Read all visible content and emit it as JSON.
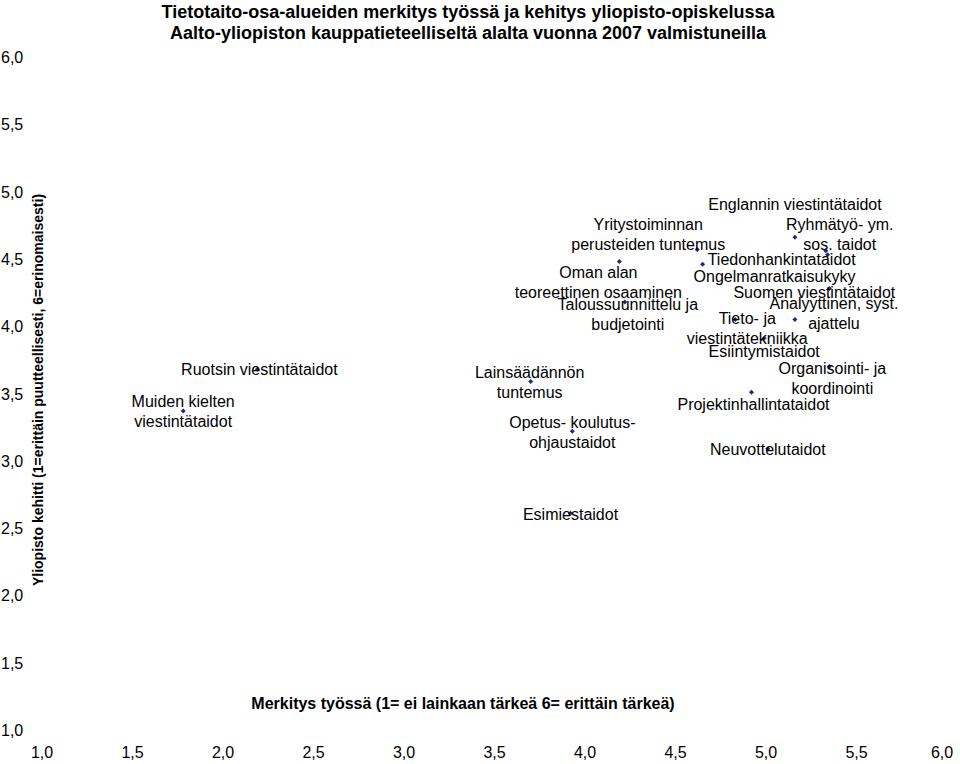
{
  "chart_data": {
    "type": "scatter",
    "title": "Tietotaito-osa-alueiden merkitys työssä ja kehitys yliopisto-opiskelussa",
    "subtitle": "Aalto-yliopiston kauppatieteelliseltä alalta vuonna 2007 valmistuneilla",
    "x_label": "Merkitys työssä (1= ei lainkaan tärkeä  6= erittäin tärkeä)",
    "y_label": "Yliopisto kehitti (1=erittäin puutteellisesti, 6=erinomaisesti)",
    "labels": [
      "Englannin viestintätaidot",
      "Ryhmätyö- ym.\nsos. taidot",
      "Yritystoiminnan\nperusteiden tuntemus",
      "Oman alan\nteoreettinen osaaminen",
      "Tiedonhankintataidot",
      "Ongelmanratkaisukyky",
      "Suomen viestintätaidot",
      "Taloussuunnittelu ja\nbudjetointi",
      "Analyyttinen, syst.\najattelu",
      "Tieto- ja\nviestintätekniikka",
      "Esiintymistaidot",
      "Organisointi- ja\nkoordinointi",
      "Projektinhallintataidot",
      "Neuvottelutaidot",
      "Lainsäädännön\ntuntemus",
      "Opetus- koulutus-\nohjaustaidot",
      "Esimiestaidot",
      "Ruotsin viestintätaidot",
      "Muiden kielten\nviestintätaidot"
    ],
    "x": [
      5.16,
      5.33,
      4.62,
      4.19,
      4.65,
      5.34,
      5.35,
      4.22,
      5.16,
      4.83,
      4.99,
      5.35,
      4.92,
      5.01,
      3.7,
      3.93,
      3.92,
      2.19,
      1.78
    ],
    "values": [
      4.66,
      4.56,
      4.57,
      4.48,
      4.46,
      4.53,
      4.28,
      4.18,
      4.05,
      4.05,
      3.91,
      3.7,
      3.51,
      3.09,
      3.59,
      3.22,
      2.61,
      3.68,
      3.37
    ],
    "color": "#1f2a7a",
    "marker": "diamond",
    "xlim": [
      1,
      6
    ],
    "ylim": [
      1,
      6
    ],
    "xticks": [
      {
        "value": 1,
        "label": "1,0"
      },
      {
        "value": 1.5,
        "label": "1,5"
      },
      {
        "value": 2,
        "label": "2,0"
      },
      {
        "value": 2.5,
        "label": "2,5"
      },
      {
        "value": 3,
        "label": "3,0"
      },
      {
        "value": 3.5,
        "label": "3,5"
      },
      {
        "value": 4,
        "label": "4,0"
      },
      {
        "value": 4.5,
        "label": "4,5"
      },
      {
        "value": 5,
        "label": "5,0"
      },
      {
        "value": 5.5,
        "label": "5,5"
      },
      {
        "value": 6,
        "label": "6,0"
      }
    ],
    "yticks": [
      {
        "value": 1,
        "label": "1,0"
      },
      {
        "value": 1.5,
        "label": "1,5"
      },
      {
        "value": 2,
        "label": "2,0"
      },
      {
        "value": 2.5,
        "label": "2,5"
      },
      {
        "value": 3,
        "label": "3,0"
      },
      {
        "value": 3.5,
        "label": "3,5"
      },
      {
        "value": 4,
        "label": "4,0"
      },
      {
        "value": 4.5,
        "label": "4,5"
      },
      {
        "value": 5,
        "label": "5,0"
      },
      {
        "value": 5.5,
        "label": "5,5"
      },
      {
        "value": 6,
        "label": "6,0"
      }
    ],
    "grid": false
  }
}
